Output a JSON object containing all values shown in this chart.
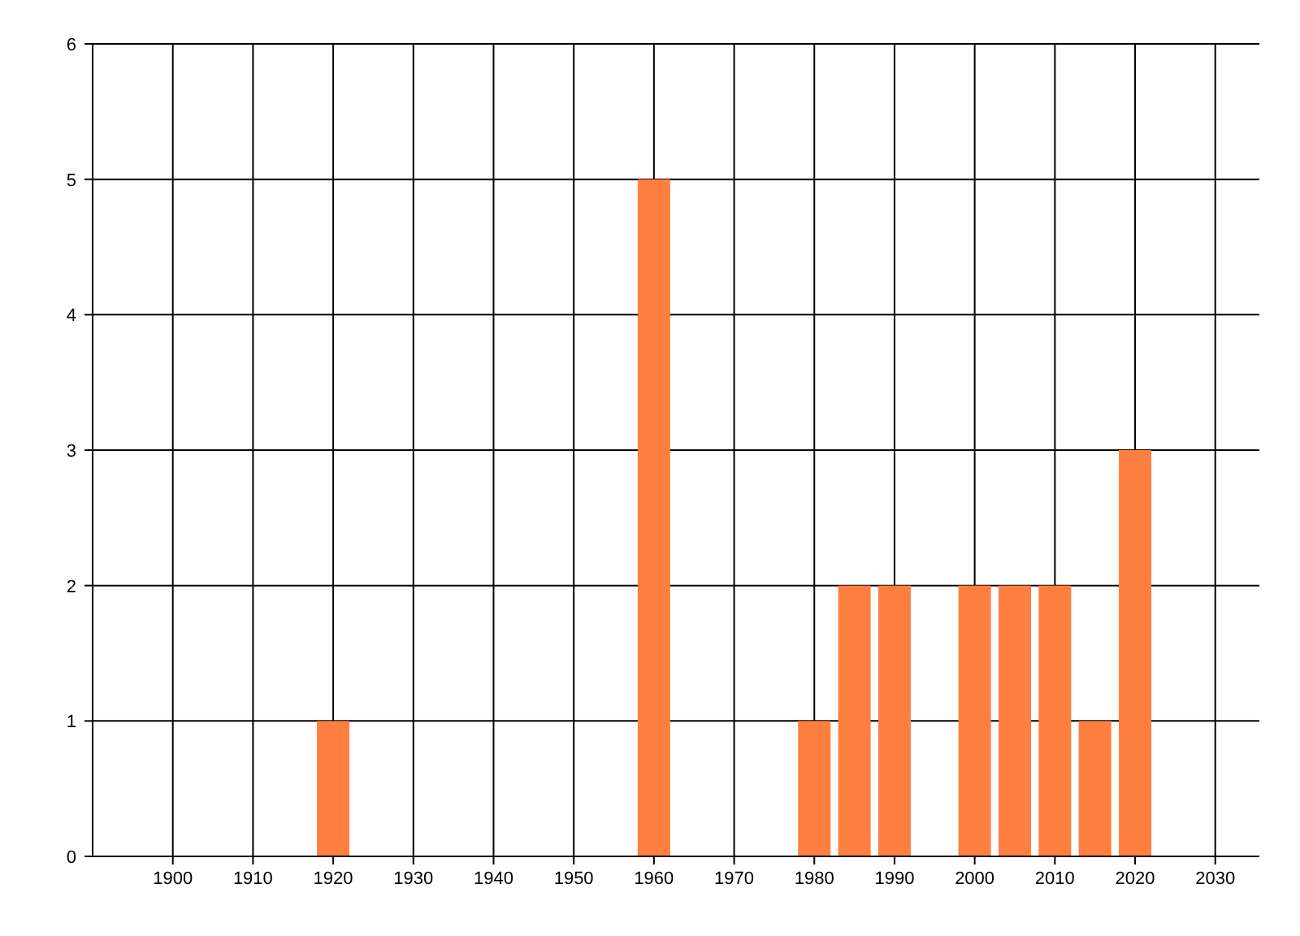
{
  "chart_data": {
    "type": "bar",
    "x": [
      1920,
      1960,
      1980,
      1985,
      1990,
      2000,
      2005,
      2010,
      2015,
      2020
    ],
    "values": [
      1,
      5,
      1,
      2,
      2,
      2,
      2,
      2,
      1,
      3
    ],
    "color": "#ff7f40",
    "xlim": [
      1890,
      2035.5
    ],
    "xticks": [
      1900,
      1910,
      1920,
      1930,
      1940,
      1950,
      1960,
      1970,
      1980,
      1990,
      2000,
      2010,
      2020,
      2030
    ],
    "ylim": [
      0,
      6
    ],
    "yticks": [
      0,
      1,
      2,
      3,
      4,
      5,
      6
    ],
    "grid": true
  }
}
